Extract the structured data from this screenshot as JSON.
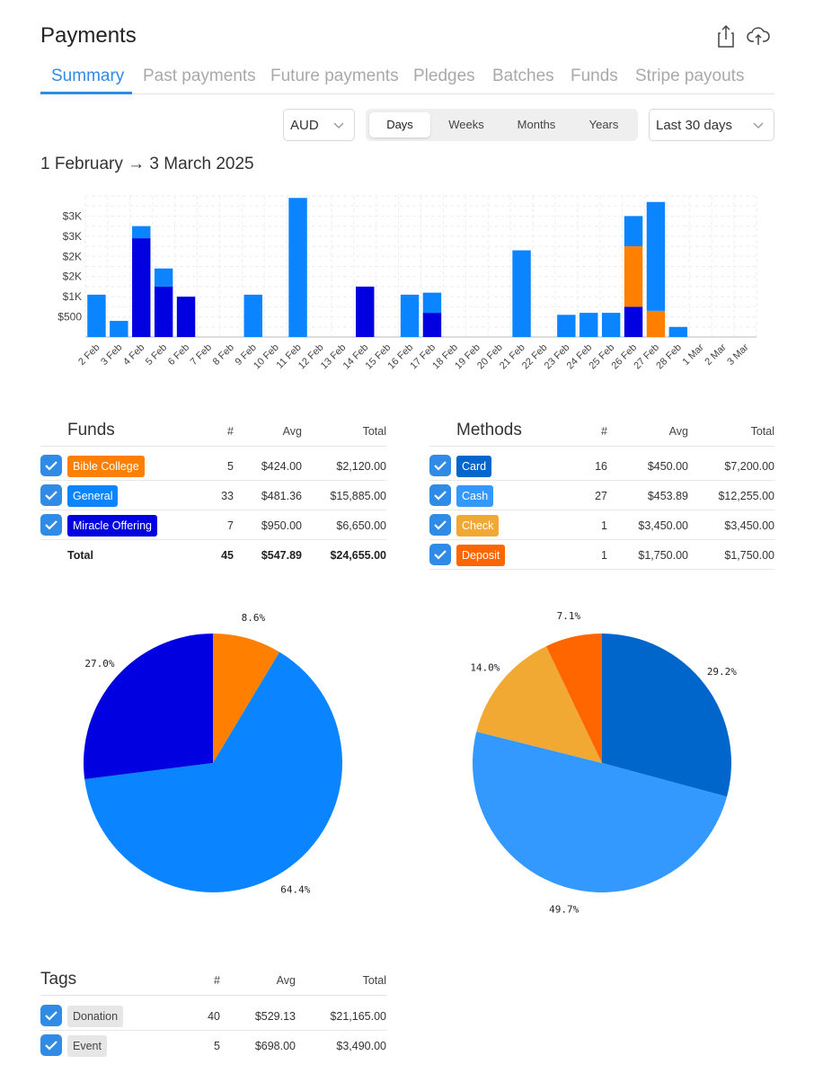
{
  "header": {
    "title": "Payments",
    "share_icon": "share-icon",
    "upload_icon": "cloud-upload-icon"
  },
  "tabs": [
    {
      "label": "Summary",
      "active": true
    },
    {
      "label": "Past payments"
    },
    {
      "label": "Future payments"
    },
    {
      "label": "Pledges"
    },
    {
      "label": "Batches"
    },
    {
      "label": "Funds"
    },
    {
      "label": "Stripe payouts"
    }
  ],
  "controls": {
    "currency": "AUD",
    "periods": [
      "Days",
      "Weeks",
      "Months",
      "Years"
    ],
    "active_period": "Days",
    "range": "Last 30 days"
  },
  "date_range": "1 February → 3 March 2025",
  "colors": {
    "accent": "#2f8be6",
    "general": "#0a84ff",
    "miracle": "#0000e0",
    "bible": "#ff8000",
    "card": "#0066cc",
    "cash": "#3399ff",
    "check": "#f2a934",
    "deposit": "#ff6600"
  },
  "chart_data": {
    "type": "bar",
    "stacked": true,
    "categories": [
      "2 Feb",
      "3 Feb",
      "4 Feb",
      "5 Feb",
      "6 Feb",
      "7 Feb",
      "8 Feb",
      "9 Feb",
      "10 Feb",
      "11 Feb",
      "12 Feb",
      "13 Feb",
      "14 Feb",
      "15 Feb",
      "16 Feb",
      "17 Feb",
      "18 Feb",
      "19 Feb",
      "20 Feb",
      "21 Feb",
      "22 Feb",
      "23 Feb",
      "24 Feb",
      "25 Feb",
      "26 Feb",
      "27 Feb",
      "28 Feb",
      "1 Mar",
      "2 Mar",
      "3 Mar"
    ],
    "y_ticks": [
      "$500",
      "$1K",
      "$2K",
      "$2K",
      "$3K",
      "$3K"
    ],
    "y_tick_values": [
      500,
      1000,
      1500,
      2000,
      2500,
      3000
    ],
    "ylim": [
      0,
      3500
    ],
    "grid": true,
    "series": [
      {
        "color": "#0000e0",
        "values": [
          0,
          0,
          2450,
          1250,
          1000,
          0,
          0,
          0,
          0,
          0,
          0,
          0,
          1250,
          0,
          0,
          600,
          0,
          0,
          0,
          0,
          0,
          0,
          0,
          0,
          750,
          0,
          0,
          0,
          0,
          0
        ]
      },
      {
        "color": "#ff8000",
        "values": [
          0,
          0,
          0,
          0,
          0,
          0,
          0,
          0,
          0,
          0,
          0,
          0,
          0,
          0,
          0,
          0,
          0,
          0,
          0,
          0,
          0,
          0,
          0,
          0,
          1500,
          650,
          0,
          0,
          0,
          0
        ]
      },
      {
        "color": "#0a84ff",
        "values": [
          1050,
          400,
          300,
          450,
          0,
          0,
          0,
          1050,
          0,
          3450,
          0,
          0,
          0,
          0,
          1050,
          500,
          0,
          0,
          0,
          2150,
          0,
          550,
          600,
          600,
          750,
          2700,
          250,
          0,
          0,
          0
        ]
      }
    ]
  },
  "funds": {
    "title": "Funds",
    "headers": [
      "#",
      "Avg",
      "Total"
    ],
    "rows": [
      {
        "name": "Bible College",
        "color": "#ff8000",
        "count": "5",
        "avg": "$424.00",
        "total": "$2,120.00"
      },
      {
        "name": "General",
        "color": "#0a84ff",
        "count": "33",
        "avg": "$481.36",
        "total": "$15,885.00"
      },
      {
        "name": "Miracle Offering",
        "color": "#0000e0",
        "count": "7",
        "avg": "$950.00",
        "total": "$6,650.00"
      }
    ],
    "total": {
      "label": "Total",
      "count": "45",
      "avg": "$547.89",
      "total": "$24,655.00"
    }
  },
  "methods": {
    "title": "Methods",
    "headers": [
      "#",
      "Avg",
      "Total"
    ],
    "rows": [
      {
        "name": "Card",
        "color": "#0066cc",
        "count": "16",
        "avg": "$450.00",
        "total": "$7,200.00"
      },
      {
        "name": "Cash",
        "color": "#3399ff",
        "count": "27",
        "avg": "$453.89",
        "total": "$12,255.00"
      },
      {
        "name": "Check",
        "color": "#f2a934",
        "count": "1",
        "avg": "$3,450.00",
        "total": "$3,450.00"
      },
      {
        "name": "Deposit",
        "color": "#ff6600",
        "count": "1",
        "avg": "$1,750.00",
        "total": "$1,750.00"
      }
    ]
  },
  "pies": [
    {
      "type": "pie",
      "slices": [
        {
          "label": "8.6%",
          "value": 8.6,
          "color": "#ff8000"
        },
        {
          "label": "64.4%",
          "value": 64.4,
          "color": "#0a84ff"
        },
        {
          "label": "27.0%",
          "value": 27.0,
          "color": "#0000e0"
        }
      ]
    },
    {
      "type": "pie",
      "slices": [
        {
          "label": "29.2%",
          "value": 29.2,
          "color": "#0066cc"
        },
        {
          "label": "49.7%",
          "value": 49.7,
          "color": "#3399ff"
        },
        {
          "label": "14.0%",
          "value": 14.0,
          "color": "#f2a934"
        },
        {
          "label": "7.1%",
          "value": 7.1,
          "color": "#ff6600"
        }
      ]
    }
  ],
  "tags": {
    "title": "Tags",
    "headers": [
      "#",
      "Avg",
      "Total"
    ],
    "rows": [
      {
        "name": "Donation",
        "count": "40",
        "avg": "$529.13",
        "total": "$21,165.00"
      },
      {
        "name": "Event",
        "count": "5",
        "avg": "$698.00",
        "total": "$3,490.00"
      }
    ]
  }
}
